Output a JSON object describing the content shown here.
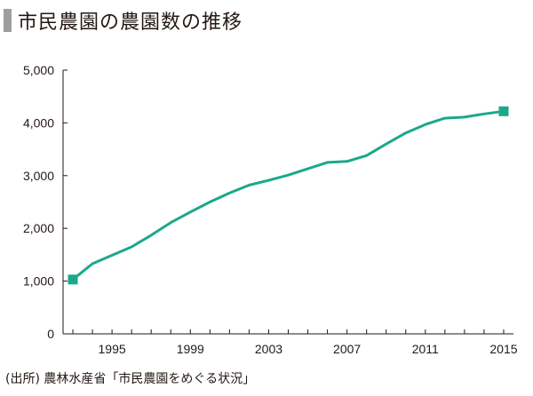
{
  "title": "市民農園の農園数の推移",
  "source": "(出所) 農林水産省「市民農園をめぐる状況」",
  "colors": {
    "line": "#1aa98a",
    "title_bar": "#9e9e9e",
    "axis": "#231815"
  },
  "chart_data": {
    "type": "line",
    "title": "市民農園の農園数の推移",
    "xlabel": "",
    "ylabel": "",
    "xlim": [
      1992.5,
      2015.5
    ],
    "ylim": [
      0,
      5000
    ],
    "x_ticks": [
      1995,
      1999,
      2003,
      2007,
      2011,
      2015
    ],
    "y_ticks": [
      0,
      1000,
      2000,
      3000,
      4000,
      5000
    ],
    "y_tick_labels": [
      "0",
      "1,000",
      "2,000",
      "3,000",
      "4,000",
      "5,000"
    ],
    "grid": false,
    "markers_at_endpoints": true,
    "series": [
      {
        "x": [
          1993,
          1994,
          1995,
          1996,
          1997,
          1998,
          1999,
          2000,
          2001,
          2002,
          2003,
          2004,
          2005,
          2006,
          2007,
          2008,
          2009,
          2010,
          2011,
          2012,
          2013,
          2014,
          2015
        ],
        "y": [
          1030,
          1330,
          1490,
          1650,
          1870,
          2110,
          2310,
          2500,
          2670,
          2820,
          2910,
          3010,
          3130,
          3250,
          3270,
          3380,
          3600,
          3810,
          3970,
          4090,
          4110,
          4170,
          4220
        ]
      }
    ]
  }
}
